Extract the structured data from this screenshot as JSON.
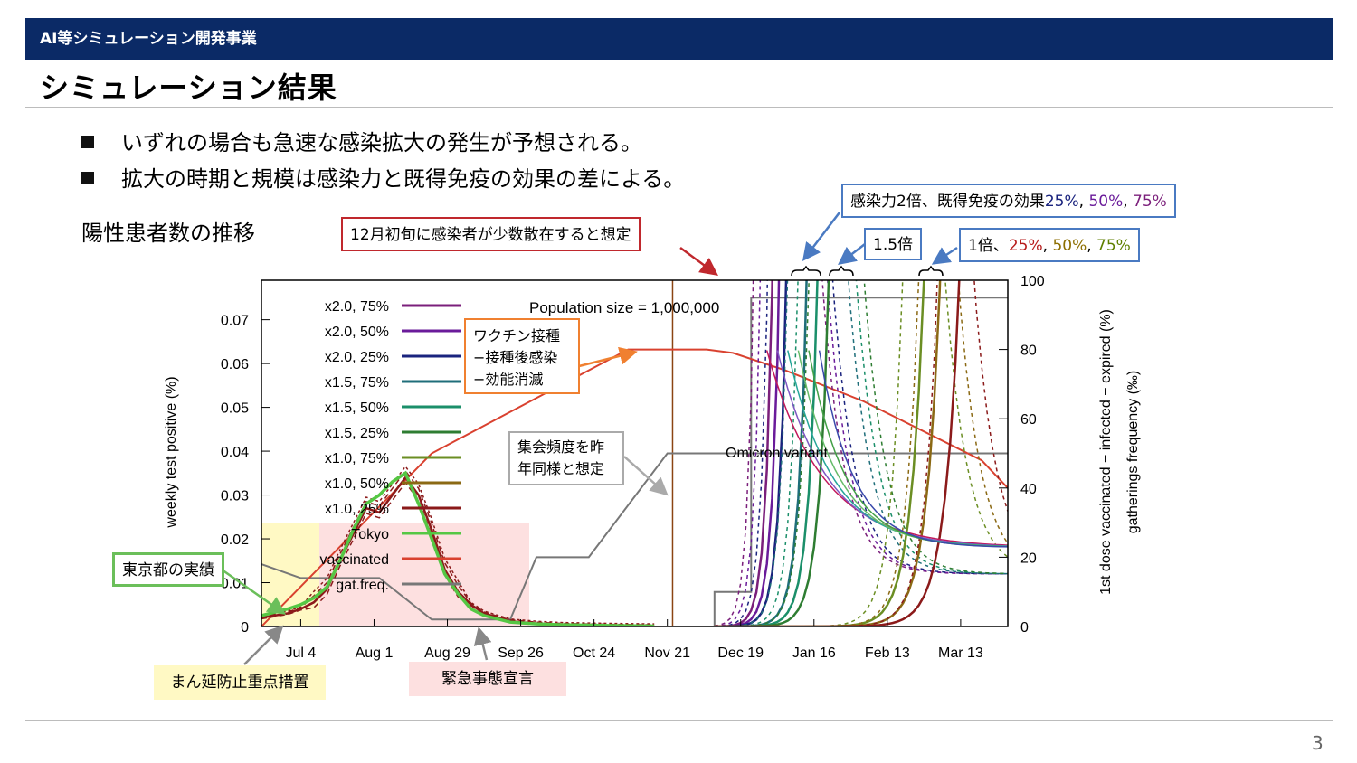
{
  "header": {
    "label": "AI等シミュレーション開発事業"
  },
  "page": {
    "title": "シミュレーション結果",
    "page_number": "3"
  },
  "bullets": [
    "いずれの場合も急速な感染拡大の発生が予想される。",
    "拡大の時期と規模は感染力と既得免疫の効果の差による。"
  ],
  "subtitle": "陽性患者数の推移",
  "annotations": {
    "initial": "12月初旬に感染者が少数散在すると想定",
    "x2_prefix": "感染力2倍、既得免疫の効果",
    "x15": "1.5倍",
    "x1_prefix": "1倍、",
    "p25": "25%",
    "p50": "50%",
    "p75": "75%",
    "sep": ", ",
    "vaccine": [
      "ワクチン接種",
      "−接種後感染",
      "−効能消滅"
    ],
    "gathering": [
      "集会頻度を昨",
      "年同様と想定"
    ],
    "tokyo_actual": "東京都の実績",
    "manen": "まん延防止重点措置",
    "emergency": "緊急事態宣言",
    "population": "Population size = 1,000,000",
    "omicron": "Omicron variant",
    "colors": {
      "x2": "#6a1b9a",
      "x2_25": "#1a237e",
      "x1_25": "#b71c1c",
      "x1_50": "#8d6e00",
      "x1_75": "#5f7f00",
      "navy": "#0b2a66"
    }
  },
  "chart_data": {
    "type": "line",
    "xlabel": "",
    "ylabel": "weekly test positive (%)",
    "y2label": [
      "1st dose vaccinated − infected − expired (%)",
      "gatherings frequency (‰)"
    ],
    "xticks": [
      "Jul 4",
      "Aug 1",
      "Aug 29",
      "Sep 26",
      "Oct 24",
      "Nov 21",
      "Dec 19",
      "Jan 16",
      "Feb 13",
      "Mar 13"
    ],
    "yticks": [
      "0",
      "0.01",
      "0.02",
      "0.03",
      "0.04",
      "0.05",
      "0.06",
      "0.07"
    ],
    "y2ticks": [
      "0",
      "20",
      "40",
      "60",
      "80",
      "100"
    ],
    "xlim_days": [
      -15,
      270
    ],
    "ylim": [
      0,
      0.079
    ],
    "y2lim": [
      0,
      100
    ],
    "legend_position": "top-left",
    "legend": [
      {
        "name": "x2.0, 75%",
        "color": "#7b1f7b"
      },
      {
        "name": "x2.0, 50%",
        "color": "#6a1b9a"
      },
      {
        "name": "x2.0, 25%",
        "color": "#1a237e"
      },
      {
        "name": "x1.5, 75%",
        "color": "#1f6e7a"
      },
      {
        "name": "x1.5, 50%",
        "color": "#1b8f6a"
      },
      {
        "name": "x1.5, 25%",
        "color": "#2e7d32"
      },
      {
        "name": "x1.0, 75%",
        "color": "#6b8e23"
      },
      {
        "name": "x1.0, 50%",
        "color": "#8b6914"
      },
      {
        "name": "x1.0, 25%",
        "color": "#8b1a1a"
      },
      {
        "name": "Tokyo",
        "color": "#55c744"
      },
      {
        "name": "vaccinated",
        "color": "#d9412f"
      },
      {
        "name": "gat.freq.",
        "color": "#777777"
      }
    ],
    "tokyo": {
      "x": [
        -15,
        -5,
        0,
        5,
        10,
        15,
        20,
        25,
        30,
        35,
        40,
        45,
        50,
        55,
        60,
        65,
        70,
        80,
        90,
        100,
        110,
        120,
        135
      ],
      "y": [
        0.0025,
        0.004,
        0.005,
        0.0065,
        0.009,
        0.015,
        0.022,
        0.028,
        0.03,
        0.033,
        0.035,
        0.028,
        0.02,
        0.012,
        0.0075,
        0.004,
        0.0025,
        0.001,
        0.0006,
        0.0004,
        0.0003,
        0.0002,
        0.0001
      ]
    },
    "sim_baseline": {
      "x": [
        -15,
        -5,
        0,
        5,
        10,
        15,
        20,
        25,
        30,
        35,
        40,
        45,
        50,
        55,
        60,
        65,
        70,
        80,
        90,
        100,
        110,
        120,
        135
      ],
      "y": [
        0.002,
        0.003,
        0.004,
        0.0055,
        0.0085,
        0.015,
        0.021,
        0.027,
        0.026,
        0.03,
        0.034,
        0.03,
        0.022,
        0.013,
        0.008,
        0.005,
        0.003,
        0.0012,
        0.0007,
        0.0004,
        0.0003,
        0.0002,
        0.0001
      ]
    },
    "vaccinated": {
      "x": [
        -15,
        50,
        125,
        155,
        165,
        185,
        215,
        260,
        270
      ],
      "y": [
        0,
        50,
        80,
        80,
        79,
        74,
        65,
        48,
        40
      ]
    },
    "gat_freq": {
      "x": [
        -15,
        0,
        30,
        50,
        80,
        90,
        110,
        140,
        150,
        270
      ],
      "y": [
        18,
        14,
        14,
        2,
        2,
        20,
        20,
        50,
        50,
        50
      ]
    },
    "dec_step": {
      "x": [
        155,
        158,
        158,
        172,
        172,
        270
      ],
      "y": [
        0,
        0,
        10,
        10,
        95,
        95
      ]
    },
    "omicron_start_day": 142
  }
}
